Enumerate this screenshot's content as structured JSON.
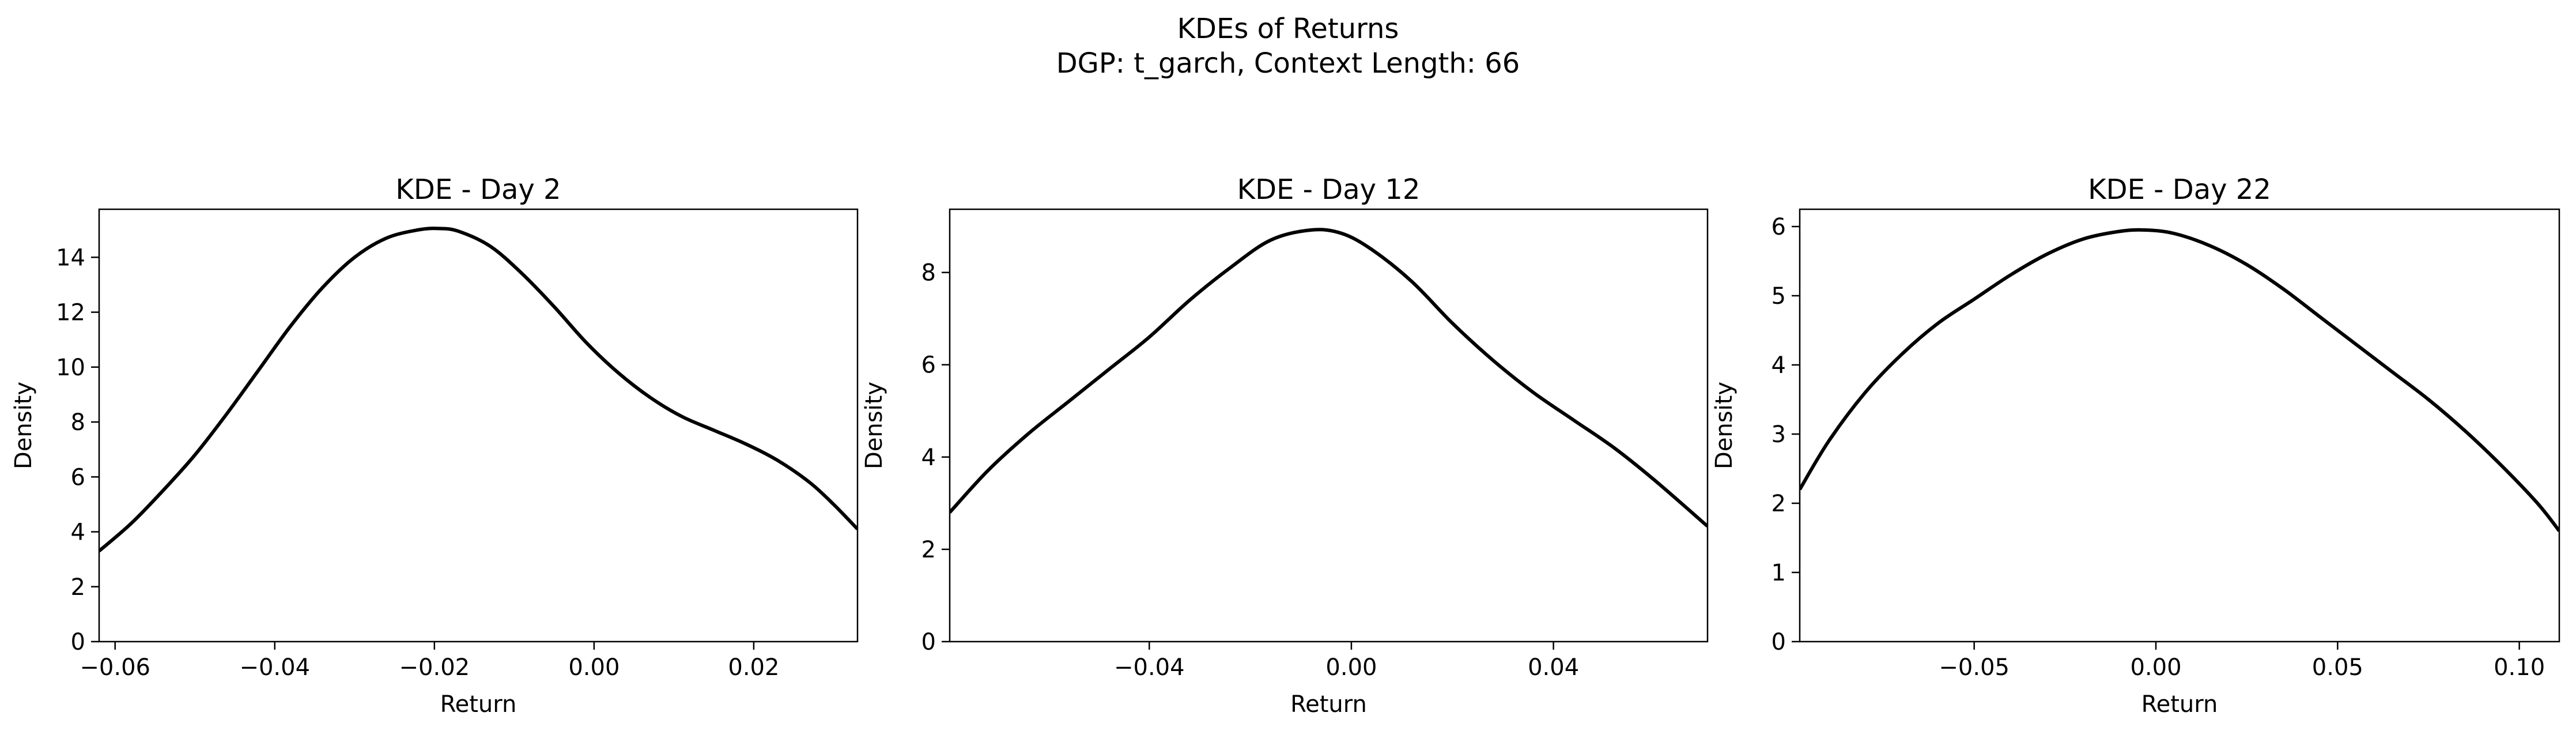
{
  "figure": {
    "title_line1": "KDEs of Returns",
    "title_line2": "DGP: t_garch, Context Length: 66"
  },
  "colors": {
    "line": "#000000",
    "axes": "#000000",
    "background": "#ffffff"
  },
  "chart_data": [
    {
      "type": "line",
      "title": "KDE - Day 2",
      "xlabel": "Return",
      "ylabel": "Density",
      "grid": false,
      "legend": "none",
      "xlim": [
        -0.062,
        0.033
      ],
      "ylim": [
        0,
        15.75
      ],
      "xticks": [
        -0.06,
        -0.04,
        -0.02,
        0.0,
        0.02
      ],
      "xtick_labels": [
        "−0.06",
        "−0.04",
        "−0.02",
        "0.00",
        "0.02"
      ],
      "yticks": [
        0,
        2,
        4,
        6,
        8,
        10,
        12,
        14
      ],
      "ytick_labels": [
        "0",
        "2",
        "4",
        "6",
        "8",
        "10",
        "12",
        "14"
      ],
      "series": [
        {
          "x": [
            -0.062,
            -0.058,
            -0.054,
            -0.05,
            -0.046,
            -0.042,
            -0.038,
            -0.034,
            -0.03,
            -0.026,
            -0.022,
            -0.0195,
            -0.017,
            -0.013,
            -0.009,
            -0.005,
            -0.001,
            0.003,
            0.007,
            0.011,
            0.015,
            0.019,
            0.023,
            0.027,
            0.03,
            0.033
          ],
          "y": [
            3.3,
            4.3,
            5.5,
            6.8,
            8.3,
            9.9,
            11.5,
            12.9,
            14.0,
            14.7,
            15.0,
            15.05,
            14.95,
            14.4,
            13.4,
            12.2,
            10.9,
            9.8,
            8.9,
            8.2,
            7.7,
            7.2,
            6.6,
            5.8,
            5.0,
            4.1
          ]
        }
      ]
    },
    {
      "type": "line",
      "title": "KDE - Day 12",
      "xlabel": "Return",
      "ylabel": "Density",
      "grid": false,
      "legend": "none",
      "xlim": [
        -0.0795,
        0.0705
      ],
      "ylim": [
        0,
        9.37
      ],
      "xticks": [
        -0.04,
        0.0,
        0.04
      ],
      "xtick_labels": [
        "−0.04",
        "0.00",
        "0.04"
      ],
      "yticks": [
        0,
        2,
        4,
        6,
        8
      ],
      "ytick_labels": [
        "0",
        "2",
        "4",
        "6",
        "8"
      ],
      "series": [
        {
          "x": [
            -0.0795,
            -0.072,
            -0.064,
            -0.056,
            -0.048,
            -0.04,
            -0.032,
            -0.024,
            -0.016,
            -0.008,
            -0.002,
            0.004,
            0.012,
            0.02,
            0.028,
            0.036,
            0.044,
            0.052,
            0.06,
            0.0705
          ],
          "y": [
            2.8,
            3.7,
            4.5,
            5.2,
            5.9,
            6.6,
            7.4,
            8.1,
            8.7,
            8.92,
            8.85,
            8.5,
            7.8,
            6.9,
            6.1,
            5.4,
            4.8,
            4.2,
            3.5,
            2.5
          ]
        }
      ]
    },
    {
      "type": "line",
      "title": "KDE - Day 22",
      "xlabel": "Return",
      "ylabel": "Density",
      "grid": false,
      "legend": "none",
      "xlim": [
        -0.098,
        0.111
      ],
      "ylim": [
        0,
        6.25
      ],
      "xticks": [
        -0.05,
        0.0,
        0.05,
        0.1
      ],
      "xtick_labels": [
        "−0.05",
        "0.00",
        "0.05",
        "0.10"
      ],
      "yticks": [
        0,
        1,
        2,
        3,
        4,
        5,
        6
      ],
      "ytick_labels": [
        "0",
        "1",
        "2",
        "3",
        "4",
        "5",
        "6"
      ],
      "series": [
        {
          "x": [
            -0.098,
            -0.09,
            -0.08,
            -0.07,
            -0.06,
            -0.05,
            -0.04,
            -0.03,
            -0.02,
            -0.01,
            -0.003,
            0.005,
            0.015,
            0.025,
            0.035,
            0.045,
            0.055,
            0.065,
            0.075,
            0.085,
            0.095,
            0.105,
            0.111
          ],
          "y": [
            2.2,
            2.9,
            3.6,
            4.15,
            4.6,
            4.95,
            5.3,
            5.6,
            5.82,
            5.93,
            5.95,
            5.9,
            5.72,
            5.45,
            5.1,
            4.7,
            4.3,
            3.9,
            3.5,
            3.05,
            2.55,
            2.0,
            1.6
          ]
        }
      ]
    }
  ]
}
